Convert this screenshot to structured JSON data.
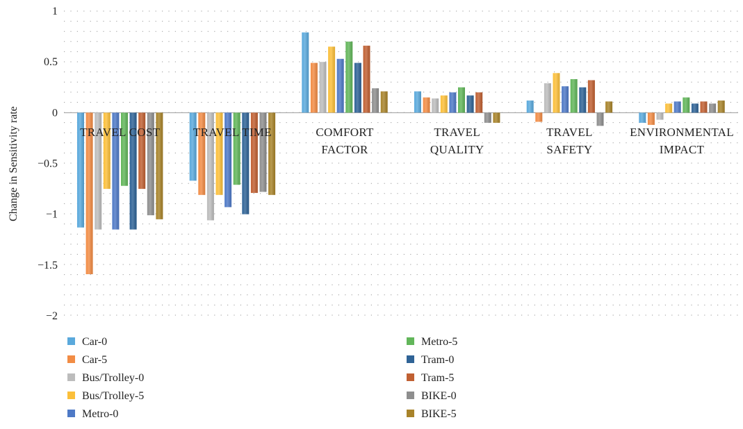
{
  "chart_data": {
    "type": "bar",
    "ylabel": "Change in Sensitivity rate",
    "ylim": [
      -2,
      1
    ],
    "yticks": [
      1,
      0.5,
      0,
      -0.5,
      -1,
      -1.5,
      -2
    ],
    "ytick_labels": [
      "1",
      "0.5",
      "0",
      "−0.5",
      "−1",
      "−1.5",
      "−2"
    ],
    "grid": "dotted",
    "legend_position": "bottom",
    "categories": [
      [
        "TRAVEL COST"
      ],
      [
        "TRAVEL TIME"
      ],
      [
        "COMFORT",
        "FACTOR"
      ],
      [
        "TRAVEL",
        "QUALITY"
      ],
      [
        "TRAVEL",
        "SAFETY"
      ],
      [
        "ENVIRONMENTAL",
        "IMPACT"
      ]
    ],
    "series": [
      {
        "name": "Car-0",
        "color": "#5aa9dc",
        "values": [
          -1.13,
          -0.67,
          0.79,
          0.21,
          0.12,
          -0.1
        ]
      },
      {
        "name": "Car-5",
        "color": "#f28c45",
        "values": [
          -1.59,
          -0.81,
          0.49,
          0.15,
          -0.09,
          -0.12
        ]
      },
      {
        "name": "Bus/Trolley-0",
        "color": "#bcbcbc",
        "values": [
          -1.15,
          -1.06,
          0.5,
          0.14,
          0.29,
          -0.07
        ]
      },
      {
        "name": "Bus/Trolley-5",
        "color": "#fbbf3a",
        "values": [
          -0.75,
          -0.81,
          0.65,
          0.17,
          0.39,
          0.09
        ]
      },
      {
        "name": "Metro-0",
        "color": "#4e79c6",
        "values": [
          -1.15,
          -0.93,
          0.53,
          0.2,
          0.26,
          0.11
        ]
      },
      {
        "name": "Metro-5",
        "color": "#62b65a",
        "values": [
          -0.72,
          -0.71,
          0.7,
          0.25,
          0.33,
          0.15
        ]
      },
      {
        "name": "Tram-0",
        "color": "#2f6396",
        "values": [
          -1.15,
          -1.0,
          0.49,
          0.17,
          0.25,
          0.09
        ]
      },
      {
        "name": "Tram-5",
        "color": "#c06032",
        "values": [
          -0.75,
          -0.79,
          0.66,
          0.2,
          0.32,
          0.11
        ]
      },
      {
        "name": "BIKE-0",
        "color": "#8e8e8e",
        "values": [
          -1.01,
          -0.78,
          0.24,
          -0.1,
          -0.13,
          0.09
        ]
      },
      {
        "name": "BIKE-5",
        "color": "#a8832a",
        "values": [
          -1.05,
          -0.81,
          0.21,
          -0.1,
          0.11,
          0.12
        ]
      }
    ]
  }
}
